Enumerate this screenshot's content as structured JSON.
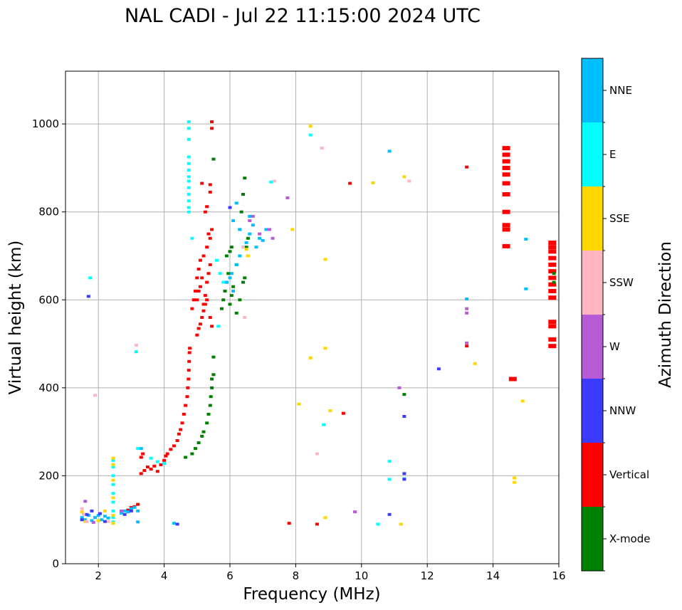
{
  "chart_data": {
    "type": "scatter",
    "title": "NAL CADI - Jul 22 11:15:00 2024 UTC",
    "xlabel": "Frequency (MHz)",
    "ylabel": "Virtual height (km)",
    "xlim": [
      1,
      16
    ],
    "ylim": [
      0,
      1120
    ],
    "xticks": [
      2,
      4,
      6,
      8,
      10,
      12,
      14,
      16
    ],
    "yticks": [
      0,
      200,
      400,
      600,
      800,
      1000
    ],
    "grid": true,
    "colorbar": {
      "label": "Azimuth Direction",
      "categories": [
        {
          "name": "X-mode",
          "color": "#008000"
        },
        {
          "name": "Vertical",
          "color": "#ff0000"
        },
        {
          "name": "NNW",
          "color": "#3b3bff"
        },
        {
          "name": "W",
          "color": "#b65ad6"
        },
        {
          "name": "SSW",
          "color": "#ffb6c1"
        },
        {
          "name": "SSE",
          "color": "#ffd700"
        },
        {
          "name": "E",
          "color": "#00ffff"
        },
        {
          "name": "NNE",
          "color": "#00bfff"
        }
      ]
    },
    "series": [
      {
        "name": "Vertical",
        "points": [
          [
            3.3,
            205
          ],
          [
            3.4,
            212
          ],
          [
            3.5,
            220
          ],
          [
            3.6,
            215
          ],
          [
            3.7,
            222
          ],
          [
            3.8,
            210
          ],
          [
            3.9,
            225
          ],
          [
            4.0,
            235
          ],
          [
            4.05,
            245
          ],
          [
            4.1,
            250
          ],
          [
            4.2,
            260
          ],
          [
            4.3,
            268
          ],
          [
            4.4,
            280
          ],
          [
            4.45,
            295
          ],
          [
            4.5,
            305
          ],
          [
            4.55,
            320
          ],
          [
            4.6,
            340
          ],
          [
            4.65,
            360
          ],
          [
            4.7,
            380
          ],
          [
            4.72,
            400
          ],
          [
            4.74,
            420
          ],
          [
            4.75,
            440
          ],
          [
            4.76,
            460
          ],
          [
            4.77,
            480
          ],
          [
            4.78,
            490
          ],
          [
            3.2,
            135
          ],
          [
            3.1,
            130
          ],
          [
            3.0,
            128
          ],
          [
            2.9,
            122
          ],
          [
            3.3,
            242
          ],
          [
            3.35,
            250
          ],
          [
            5.0,
            520
          ],
          [
            5.05,
            535
          ],
          [
            5.1,
            545
          ],
          [
            5.15,
            560
          ],
          [
            5.2,
            575
          ],
          [
            5.25,
            590
          ],
          [
            5.3,
            600
          ],
          [
            5.4,
            560
          ],
          [
            5.45,
            540
          ],
          [
            5.0,
            600
          ],
          [
            5.05,
            620
          ],
          [
            5.1,
            630
          ],
          [
            5.15,
            650
          ],
          [
            5.2,
            590
          ],
          [
            5.25,
            610
          ],
          [
            5.3,
            640
          ],
          [
            5.35,
            660
          ],
          [
            5.4,
            680
          ],
          [
            4.85,
            580
          ],
          [
            4.9,
            600
          ],
          [
            4.95,
            620
          ],
          [
            5.0,
            650
          ],
          [
            5.05,
            670
          ],
          [
            5.1,
            690
          ],
          [
            5.2,
            700
          ],
          [
            5.3,
            720
          ],
          [
            5.4,
            740
          ],
          [
            5.45,
            1005
          ],
          [
            5.45,
            990
          ],
          [
            5.15,
            865
          ],
          [
            5.4,
            862
          ],
          [
            5.4,
            845
          ],
          [
            5.3,
            812
          ],
          [
            5.25,
            800
          ],
          [
            5.45,
            760
          ],
          [
            5.35,
            750
          ],
          [
            14.4,
            945
          ],
          [
            14.4,
            930
          ],
          [
            14.4,
            915
          ],
          [
            14.4,
            900
          ],
          [
            14.4,
            885
          ],
          [
            14.4,
            865
          ],
          [
            14.4,
            840
          ],
          [
            14.4,
            800
          ],
          [
            14.4,
            770
          ],
          [
            14.4,
            760
          ],
          [
            14.4,
            722
          ],
          [
            15.8,
            730
          ],
          [
            15.8,
            720
          ],
          [
            15.8,
            710
          ],
          [
            15.8,
            695
          ],
          [
            15.8,
            680
          ],
          [
            15.8,
            665
          ],
          [
            15.8,
            650
          ],
          [
            15.8,
            635
          ],
          [
            15.8,
            620
          ],
          [
            15.8,
            605
          ],
          [
            15.8,
            550
          ],
          [
            15.8,
            540
          ],
          [
            15.8,
            510
          ],
          [
            15.8,
            495
          ],
          [
            14.6,
            420
          ],
          [
            13.2,
            902
          ],
          [
            13.2,
            495
          ],
          [
            9.65,
            865
          ],
          [
            9.45,
            342
          ],
          [
            8.65,
            90
          ],
          [
            7.8,
            92
          ]
        ]
      },
      {
        "name": "X-mode",
        "points": [
          [
            4.65,
            242
          ],
          [
            4.85,
            250
          ],
          [
            4.95,
            262
          ],
          [
            5.05,
            275
          ],
          [
            5.15,
            290
          ],
          [
            5.2,
            300
          ],
          [
            5.3,
            320
          ],
          [
            5.35,
            340
          ],
          [
            5.4,
            360
          ],
          [
            5.42,
            380
          ],
          [
            5.45,
            400
          ],
          [
            5.45,
            420
          ],
          [
            5.5,
            430
          ],
          [
            5.5,
            470
          ],
          [
            5.75,
            580
          ],
          [
            5.8,
            600
          ],
          [
            5.85,
            620
          ],
          [
            5.9,
            640
          ],
          [
            5.95,
            660
          ],
          [
            6.0,
            590
          ],
          [
            6.05,
            610
          ],
          [
            6.1,
            630
          ],
          [
            6.2,
            570
          ],
          [
            6.3,
            600
          ],
          [
            6.4,
            640
          ],
          [
            6.45,
            650
          ],
          [
            5.9,
            700
          ],
          [
            6.0,
            710
          ],
          [
            6.05,
            720
          ],
          [
            6.3,
            760
          ],
          [
            6.35,
            800
          ],
          [
            6.4,
            840
          ],
          [
            6.45,
            877
          ],
          [
            6.5,
            720
          ],
          [
            6.55,
            740
          ],
          [
            6.2,
            680
          ],
          [
            5.5,
            920
          ],
          [
            11.3,
            385
          ],
          [
            15.85,
            660
          ],
          [
            15.85,
            640
          ]
        ]
      },
      {
        "name": "NNE",
        "points": [
          [
            1.5,
            105
          ],
          [
            1.6,
            100
          ],
          [
            1.7,
            110
          ],
          [
            1.8,
            98
          ],
          [
            1.9,
            105
          ],
          [
            2.0,
            110
          ],
          [
            2.1,
            100
          ],
          [
            2.2,
            108
          ],
          [
            2.3,
            104
          ],
          [
            2.7,
            115
          ],
          [
            2.8,
            120
          ],
          [
            2.9,
            118
          ],
          [
            3.0,
            125
          ],
          [
            3.1,
            128
          ],
          [
            3.2,
            120
          ],
          [
            3.3,
            262
          ],
          [
            3.2,
            95
          ],
          [
            5.9,
            640
          ],
          [
            6.0,
            650
          ],
          [
            6.05,
            660
          ],
          [
            6.1,
            620
          ],
          [
            6.2,
            680
          ],
          [
            6.3,
            700
          ],
          [
            6.1,
            780
          ],
          [
            6.2,
            820
          ],
          [
            6.3,
            760
          ],
          [
            6.4,
            720
          ],
          [
            6.5,
            730
          ],
          [
            6.6,
            750
          ],
          [
            6.7,
            770
          ],
          [
            6.8,
            720
          ],
          [
            6.9,
            740
          ],
          [
            7.0,
            735
          ],
          [
            7.1,
            760
          ],
          [
            6.6,
            790
          ],
          [
            4.3,
            92
          ],
          [
            10.85,
            938
          ],
          [
            13.2,
            602
          ],
          [
            15.0,
            738
          ],
          [
            15.0,
            625
          ],
          [
            11.3,
            193
          ]
        ]
      },
      {
        "name": "E",
        "points": [
          [
            4.75,
            1005
          ],
          [
            4.75,
            990
          ],
          [
            4.75,
            965
          ],
          [
            4.75,
            925
          ],
          [
            4.75,
            910
          ],
          [
            4.75,
            895
          ],
          [
            4.75,
            880
          ],
          [
            4.75,
            870
          ],
          [
            4.75,
            855
          ],
          [
            4.75,
            840
          ],
          [
            4.75,
            825
          ],
          [
            4.75,
            810
          ],
          [
            4.75,
            800
          ],
          [
            2.45,
            235
          ],
          [
            2.45,
            220
          ],
          [
            2.45,
            200
          ],
          [
            2.45,
            180
          ],
          [
            2.45,
            160
          ],
          [
            2.45,
            140
          ],
          [
            2.45,
            120
          ],
          [
            2.45,
            105
          ],
          [
            2.45,
            95
          ],
          [
            3.2,
            262
          ],
          [
            3.6,
            240
          ],
          [
            3.8,
            232
          ],
          [
            4.0,
            228
          ],
          [
            5.6,
            690
          ],
          [
            5.7,
            660
          ],
          [
            5.8,
            640
          ],
          [
            5.65,
            540
          ],
          [
            4.85,
            740
          ],
          [
            1.75,
            650
          ],
          [
            3.15,
            482
          ],
          [
            8.45,
            975
          ],
          [
            8.85,
            316
          ],
          [
            10.85,
            233
          ],
          [
            10.85,
            192
          ],
          [
            10.5,
            90
          ],
          [
            7.25,
            868
          ]
        ]
      },
      {
        "name": "SSE",
        "points": [
          [
            2.45,
            240
          ],
          [
            2.45,
            225
          ],
          [
            2.45,
            190
          ],
          [
            2.45,
            150
          ],
          [
            2.45,
            110
          ],
          [
            2.45,
            92
          ],
          [
            1.5,
            118
          ],
          [
            1.6,
            96
          ],
          [
            2.0,
            98
          ],
          [
            2.2,
            120
          ],
          [
            6.5,
            715
          ],
          [
            6.55,
            700
          ],
          [
            8.45,
            995
          ],
          [
            7.9,
            760
          ],
          [
            8.9,
            692
          ],
          [
            8.9,
            490
          ],
          [
            8.45,
            468
          ],
          [
            9.05,
            348
          ],
          [
            8.1,
            363
          ],
          [
            8.9,
            105
          ],
          [
            10.35,
            866
          ],
          [
            11.3,
            880
          ],
          [
            11.2,
            90
          ],
          [
            13.45,
            455
          ],
          [
            14.65,
            195
          ],
          [
            14.65,
            185
          ],
          [
            14.9,
            370
          ]
        ]
      },
      {
        "name": "SSW",
        "points": [
          [
            1.5,
            125
          ],
          [
            1.55,
            112
          ],
          [
            1.65,
            96
          ],
          [
            2.3,
            96
          ],
          [
            1.9,
            383
          ],
          [
            3.15,
            497
          ],
          [
            6.45,
            560
          ],
          [
            6.4,
            720
          ],
          [
            7.35,
            870
          ],
          [
            11.45,
            870
          ],
          [
            8.8,
            945
          ],
          [
            8.65,
            250
          ]
        ]
      },
      {
        "name": "W",
        "points": [
          [
            1.6,
            142
          ],
          [
            1.85,
            94
          ],
          [
            2.7,
            120
          ],
          [
            6.6,
            780
          ],
          [
            6.7,
            790
          ],
          [
            7.2,
            760
          ],
          [
            7.3,
            740
          ],
          [
            6.9,
            750
          ],
          [
            7.75,
            832
          ],
          [
            13.2,
            580
          ],
          [
            13.2,
            570
          ],
          [
            13.2,
            502
          ],
          [
            11.15,
            400
          ],
          [
            9.8,
            118
          ]
        ]
      },
      {
        "name": "NNW",
        "points": [
          [
            1.5,
            100
          ],
          [
            1.65,
            112
          ],
          [
            1.8,
            120
          ],
          [
            2.05,
            114
          ],
          [
            2.2,
            96
          ],
          [
            2.8,
            112
          ],
          [
            3.0,
            120
          ],
          [
            12.35,
            443
          ],
          [
            11.3,
            335
          ],
          [
            11.3,
            205
          ],
          [
            11.3,
            192
          ],
          [
            10.85,
            112
          ],
          [
            1.7,
            608
          ],
          [
            4.4,
            90
          ],
          [
            6.0,
            810
          ]
        ]
      }
    ]
  }
}
